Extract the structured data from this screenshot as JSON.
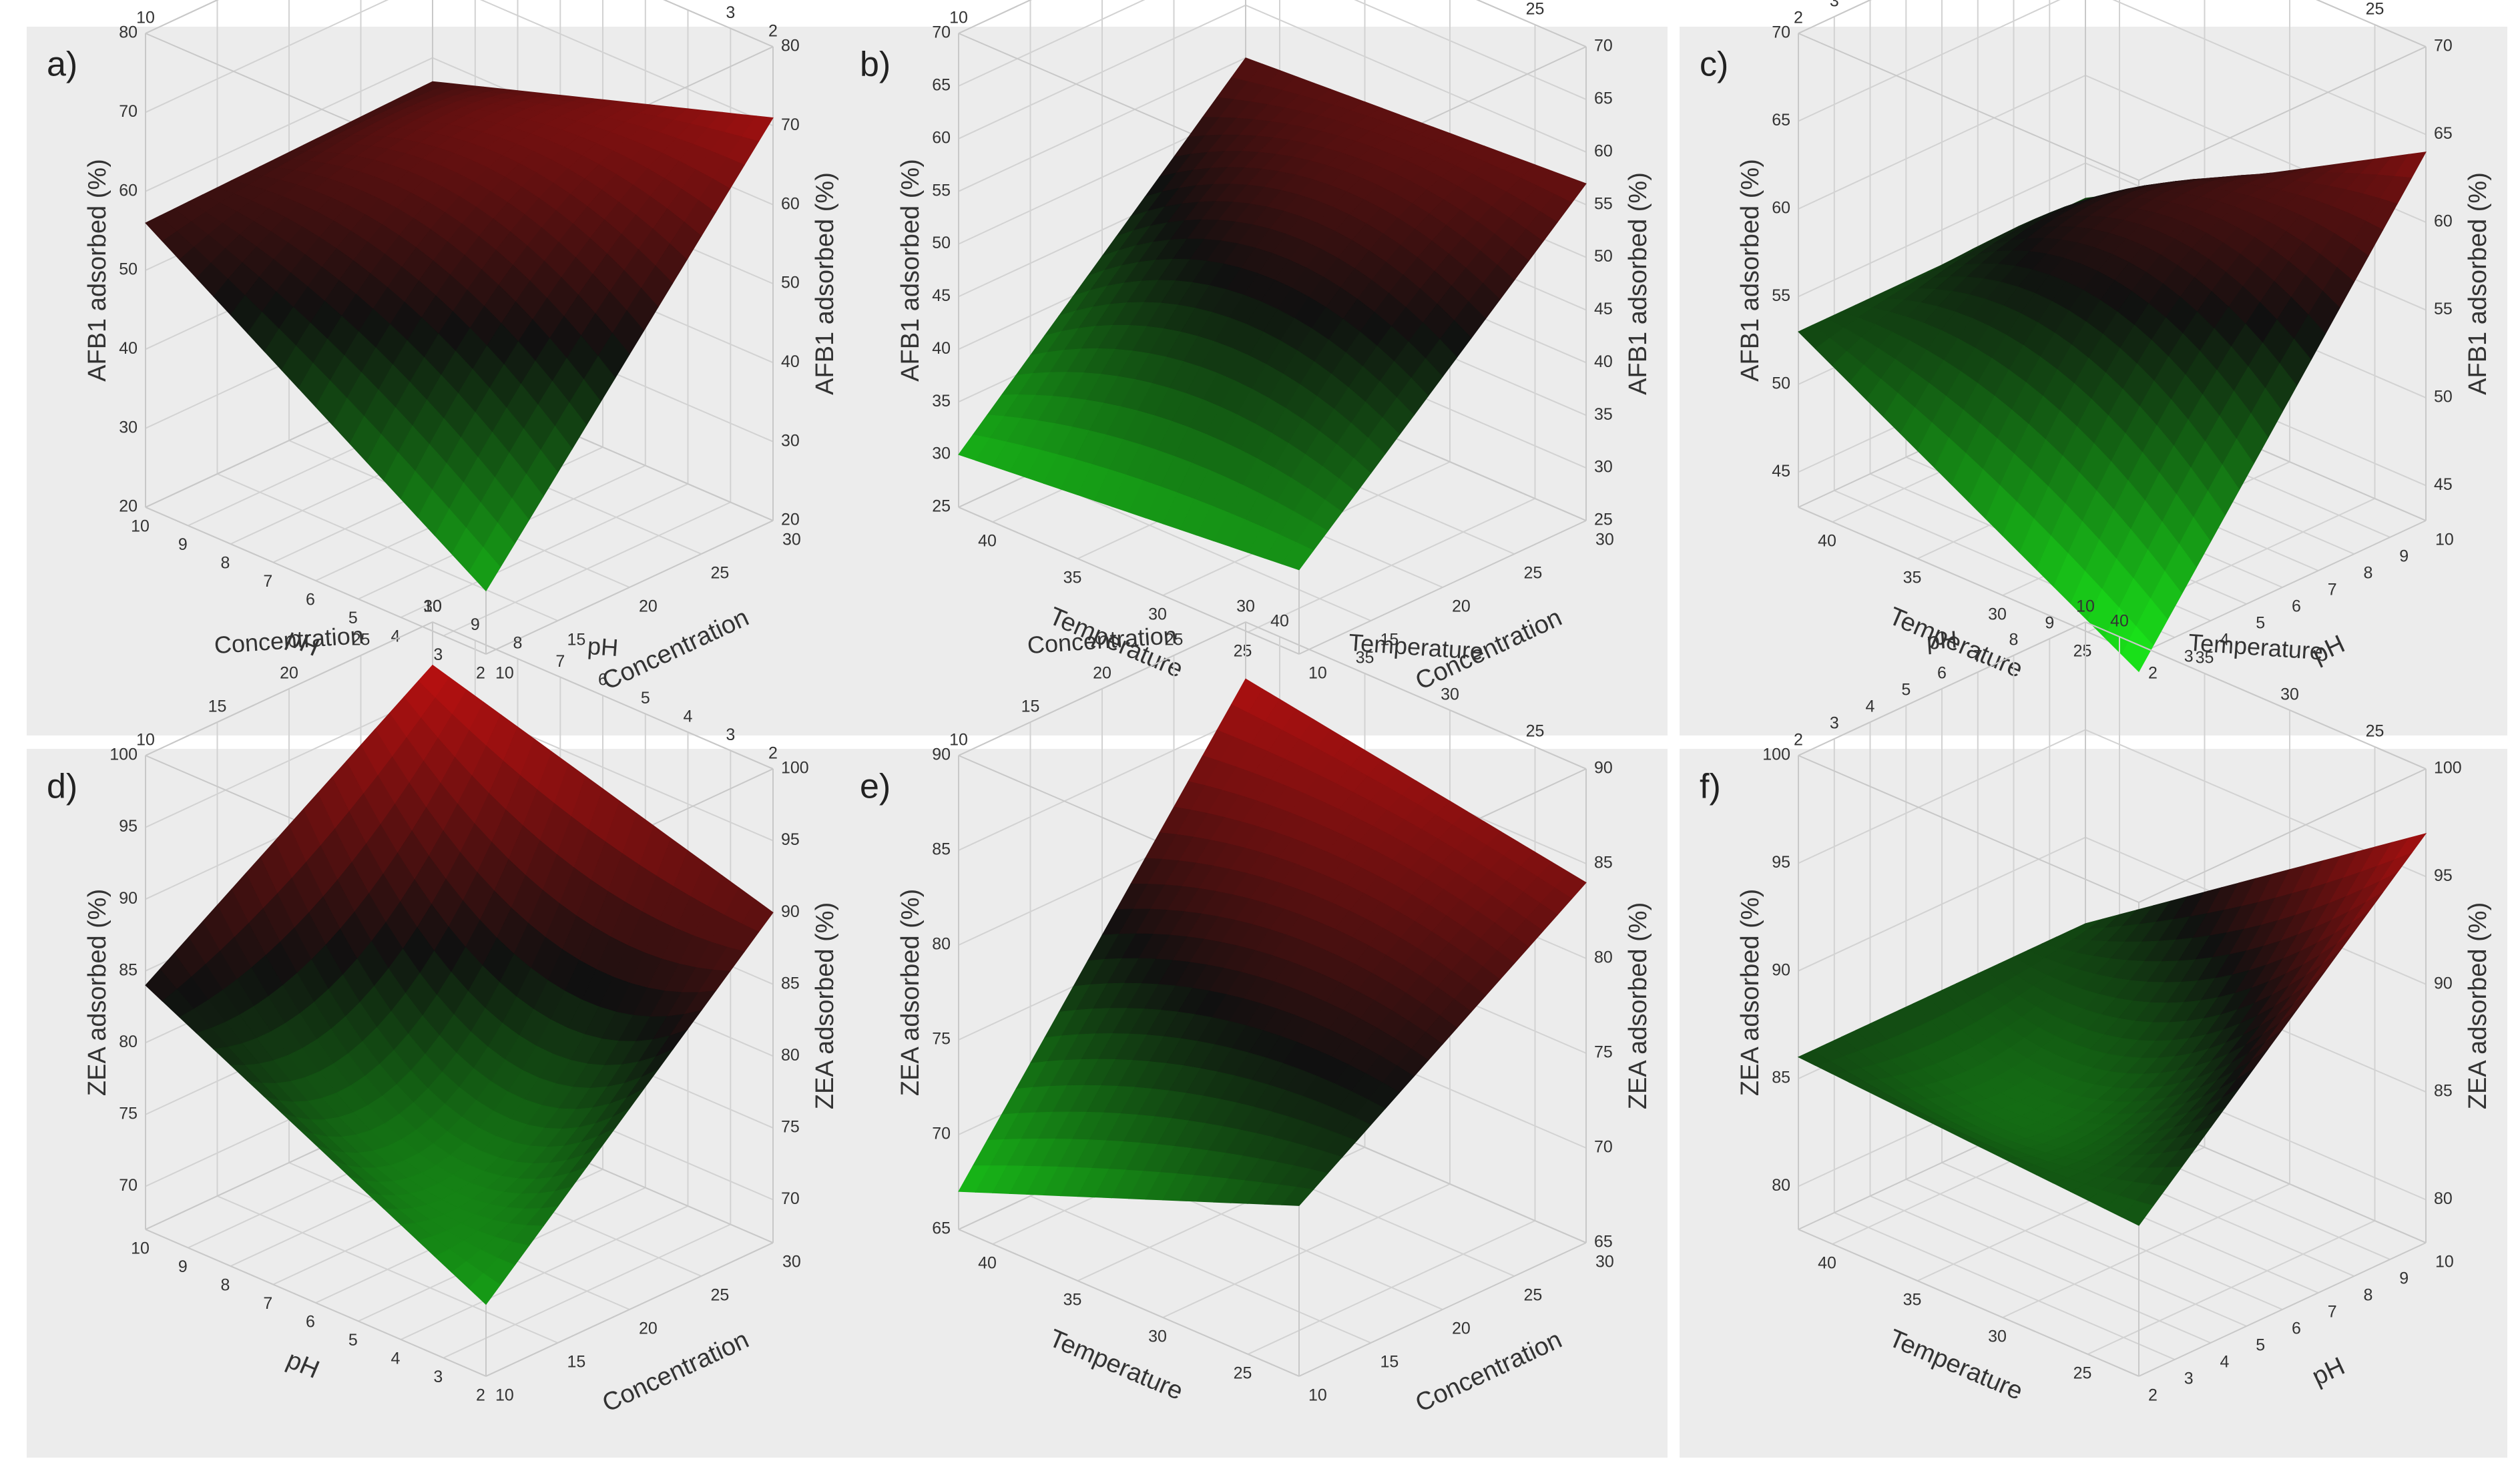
{
  "colors": {
    "high": "#e01010",
    "mid": "#101010",
    "low": "#19e019",
    "panel_bg": "#ececec"
  },
  "chart_data": [
    {
      "type": "surface",
      "label": "a)",
      "response": "AFB1 adsorbed (%)",
      "a_name": "pH",
      "a_range": [
        2,
        10
      ],
      "a_ticks": [
        "2",
        "3",
        "4",
        "5",
        "6",
        "7",
        "8",
        "9",
        "10"
      ],
      "b_name": "Concentration",
      "b_range": [
        10,
        30
      ],
      "b_ticks": [
        "10",
        "15",
        "20",
        "25",
        "30"
      ],
      "z_range": [
        20,
        80
      ],
      "z_ticks": [
        "20",
        "30",
        "40",
        "50",
        "60",
        "70",
        "80"
      ],
      "corners": {
        "a_lo_b_lo": 28,
        "a_hi_b_lo": 56,
        "a_lo_b_hi": 71,
        "a_hi_b_hi": 57
      },
      "bulge": 12
    },
    {
      "type": "surface",
      "label": "b)",
      "response": "AFB1 adsorbed (%)",
      "a_name": "Temperature",
      "a_range": [
        22,
        42
      ],
      "a_ticks": [
        "25",
        "30",
        "35",
        "40"
      ],
      "b_name": "Concentration",
      "b_range": [
        10,
        30
      ],
      "b_ticks": [
        "10",
        "15",
        "20",
        "25",
        "30"
      ],
      "z_range": [
        25,
        70
      ],
      "z_ticks": [
        "25",
        "30",
        "35",
        "40",
        "45",
        "50",
        "55",
        "60",
        "65",
        "70"
      ],
      "corners": {
        "a_lo_b_lo": 33,
        "a_hi_b_lo": 30,
        "a_lo_b_hi": 57,
        "a_hi_b_hi": 55
      },
      "bulge": 10
    },
    {
      "type": "surface",
      "label": "c)",
      "response": "AFB1 adsorbed (%)",
      "a_name": "Temperature",
      "a_range": [
        22,
        42
      ],
      "a_ticks": [
        "25",
        "30",
        "35",
        "40"
      ],
      "b_name": "pH",
      "b_range": [
        2,
        10
      ],
      "b_ticks": [
        "2",
        "3",
        "4",
        "5",
        "6",
        "7",
        "8",
        "9",
        "10"
      ],
      "z_range": [
        43,
        70
      ],
      "z_ticks": [
        "45",
        "50",
        "55",
        "60",
        "65",
        "70"
      ],
      "corners": {
        "a_lo_b_lo": 42,
        "a_hi_b_lo": 53,
        "a_lo_b_hi": 64,
        "a_hi_b_hi": 53
      },
      "bulge": 8
    },
    {
      "type": "surface",
      "label": "d)",
      "response": "ZEA adsorbed (%)",
      "a_name": "pH",
      "a_range": [
        2,
        10
      ],
      "a_ticks": [
        "2",
        "3",
        "4",
        "5",
        "6",
        "7",
        "8",
        "9",
        "10"
      ],
      "b_name": "Concentration",
      "b_range": [
        10,
        30
      ],
      "b_ticks": [
        "10",
        "15",
        "20",
        "25",
        "30"
      ],
      "z_range": [
        67,
        100
      ],
      "z_ticks": [
        "70",
        "75",
        "80",
        "85",
        "90",
        "95",
        "100"
      ],
      "corners": {
        "a_lo_b_lo": 72,
        "a_hi_b_lo": 84,
        "a_lo_b_hi": 90,
        "a_hi_b_hi": 97
      },
      "bulge": -14
    },
    {
      "type": "surface",
      "label": "e)",
      "response": "ZEA adsorbed (%)",
      "a_name": "Temperature",
      "a_range": [
        22,
        42
      ],
      "a_ticks": [
        "25",
        "30",
        "35",
        "40"
      ],
      "b_name": "Concentration",
      "b_range": [
        10,
        30
      ],
      "b_ticks": [
        "10",
        "15",
        "20",
        "25",
        "30"
      ],
      "z_range": [
        65,
        90
      ],
      "z_ticks": [
        "65",
        "70",
        "75",
        "80",
        "85",
        "90"
      ],
      "corners": {
        "a_lo_b_lo": 74,
        "a_hi_b_lo": 67,
        "a_lo_b_hi": 84,
        "a_hi_b_hi": 87
      },
      "bulge": 3
    },
    {
      "type": "surface",
      "label": "f)",
      "response": "ZEA adsorbed (%)",
      "a_name": "Temperature",
      "a_range": [
        22,
        42
      ],
      "a_ticks": [
        "25",
        "30",
        "35",
        "40"
      ],
      "b_name": "pH",
      "b_range": [
        2,
        10
      ],
      "b_ticks": [
        "2",
        "3",
        "4",
        "5",
        "6",
        "7",
        "8",
        "9",
        "10"
      ],
      "z_range": [
        78,
        100
      ],
      "z_ticks": [
        "80",
        "85",
        "90",
        "95",
        "100"
      ],
      "corners": {
        "a_lo_b_lo": 85,
        "a_hi_b_lo": 86,
        "a_lo_b_hi": 97,
        "a_hi_b_hi": 86
      },
      "bulge": -6
    }
  ]
}
